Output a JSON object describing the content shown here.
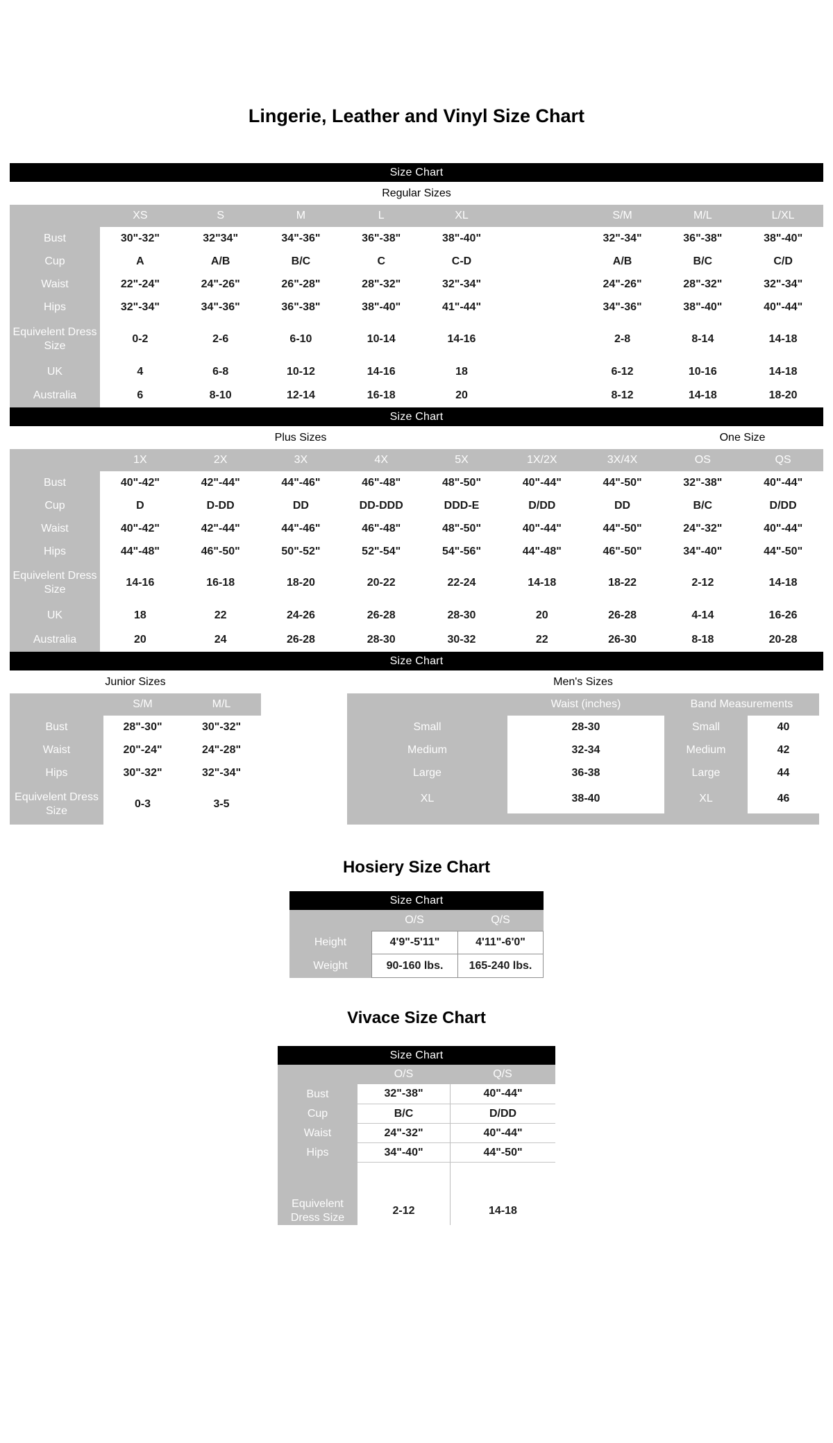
{
  "page": {
    "title": "Lingerie, Leather and Vinyl Size Chart"
  },
  "shared": {
    "size_chart_label": "Size Chart"
  },
  "colors": {
    "header_gray": "#bdbdbd",
    "bar_black": "#000000",
    "label_text": "#fdfdfd",
    "value_text": "#191919"
  },
  "regular": {
    "section_label": "Regular Sizes",
    "columns": [
      "XS",
      "S",
      "M",
      "L",
      "XL",
      "",
      "S/M",
      "M/L",
      "L/XL"
    ],
    "rows": [
      {
        "label": "Bust",
        "values": [
          "30\"-32\"",
          "32\"34\"",
          "34\"-36\"",
          "36\"-38\"",
          "38\"-40\"",
          "",
          "32\"-34\"",
          "36\"-38\"",
          "38\"-40\""
        ]
      },
      {
        "label": "Cup",
        "values": [
          "A",
          "A/B",
          "B/C",
          "C",
          "C-D",
          "",
          "A/B",
          "B/C",
          "C/D"
        ]
      },
      {
        "label": "Waist",
        "values": [
          "22\"-24\"",
          "24\"-26\"",
          "26\"-28\"",
          "28\"-32\"",
          "32\"-34\"",
          "",
          "24\"-26\"",
          "28\"-32\"",
          "32\"-34\""
        ]
      },
      {
        "label": "Hips",
        "values": [
          "32\"-34\"",
          "34\"-36\"",
          "36\"-38\"",
          "38\"-40\"",
          "41\"-44\"",
          "",
          "34\"-36\"",
          "38\"-40\"",
          "40\"-44\""
        ]
      },
      {
        "label": "Equivelent Dress Size",
        "values": [
          "0-2",
          "2-6",
          "6-10",
          "10-14",
          "14-16",
          "",
          "2-8",
          "8-14",
          "14-18"
        ]
      },
      {
        "label": "UK",
        "values": [
          "4",
          "6-8",
          "10-12",
          "14-16",
          "18",
          "",
          "6-12",
          "10-16",
          "14-18"
        ]
      },
      {
        "label": "Australia",
        "values": [
          "6",
          "8-10",
          "12-14",
          "16-18",
          "20",
          "",
          "8-12",
          "14-18",
          "18-20"
        ]
      }
    ]
  },
  "plus": {
    "section_label": "Plus Sizes",
    "one_size_label": "One Size",
    "columns": [
      "1X",
      "2X",
      "3X",
      "4X",
      "5X",
      "1X/2X",
      "3X/4X",
      "OS",
      "QS"
    ],
    "rows": [
      {
        "label": "Bust",
        "values": [
          "40\"-42\"",
          "42\"-44\"",
          "44\"-46\"",
          "46\"-48\"",
          "48\"-50\"",
          "40\"-44\"",
          "44\"-50\"",
          "32\"-38\"",
          "40\"-44\""
        ]
      },
      {
        "label": "Cup",
        "values": [
          "D",
          "D-DD",
          "DD",
          "DD-DDD",
          "DDD-E",
          "D/DD",
          "DD",
          "B/C",
          "D/DD"
        ]
      },
      {
        "label": "Waist",
        "values": [
          "40\"-42\"",
          "42\"-44\"",
          "44\"-46\"",
          "46\"-48\"",
          "48\"-50\"",
          "40\"-44\"",
          "44\"-50\"",
          "24\"-32\"",
          "40\"-44\""
        ]
      },
      {
        "label": "Hips",
        "values": [
          "44\"-48\"",
          "46\"-50\"",
          "50\"-52\"",
          "52\"-54\"",
          "54\"-56\"",
          "44\"-48\"",
          "46\"-50\"",
          "34\"-40\"",
          "44\"-50\""
        ]
      },
      {
        "label": "Equivelent Dress Size",
        "values": [
          "14-16",
          "16-18",
          "18-20",
          "20-22",
          "22-24",
          "14-18",
          "18-22",
          "2-12",
          "14-18"
        ]
      },
      {
        "label": "UK",
        "values": [
          "18",
          "22",
          "24-26",
          "26-28",
          "28-30",
          "20",
          "26-28",
          "4-14",
          "16-26"
        ]
      },
      {
        "label": "Australia",
        "values": [
          "20",
          "24",
          "26-28",
          "28-30",
          "30-32",
          "22",
          "26-30",
          "8-18",
          "20-28"
        ]
      }
    ]
  },
  "junior": {
    "section_label": "Junior Sizes",
    "columns": [
      "S/M",
      "M/L"
    ],
    "rows": [
      {
        "label": "Bust",
        "values": [
          "28\"-30\"",
          "30\"-32\""
        ]
      },
      {
        "label": "Waist",
        "values": [
          "20\"-24\"",
          "24\"-28\""
        ]
      },
      {
        "label": "Hips",
        "values": [
          "30\"-32\"",
          "32\"-34\""
        ]
      },
      {
        "label": "Equivelent Dress Size",
        "values": [
          "0-3",
          "3-5"
        ]
      }
    ]
  },
  "mens": {
    "section_label": "Men's Sizes",
    "waist_header": "Waist (inches)",
    "band_header": "Band Measurements",
    "rows": [
      {
        "label": "Small",
        "waist": "28-30",
        "band_label": "Small",
        "band": "40"
      },
      {
        "label": "Medium",
        "waist": "32-34",
        "band_label": "Medium",
        "band": "42"
      },
      {
        "label": "Large",
        "waist": "36-38",
        "band_label": "Large",
        "band": "44"
      },
      {
        "label": "XL",
        "waist": "38-40",
        "band_label": "XL",
        "band": "46"
      }
    ]
  },
  "hosiery": {
    "title": "Hosiery Size Chart",
    "columns": [
      "O/S",
      "Q/S"
    ],
    "rows": [
      {
        "label": "Height",
        "values": [
          "4'9\"-5'11\"",
          "4'11\"-6'0\""
        ]
      },
      {
        "label": "Weight",
        "values": [
          "90-160 lbs.",
          "165-240 lbs."
        ]
      }
    ]
  },
  "vivace": {
    "title": "Vivace Size Chart",
    "columns": [
      "O/S",
      "Q/S"
    ],
    "rows": [
      {
        "label": "Bust",
        "values": [
          "32\"-38\"",
          "40\"-44\""
        ]
      },
      {
        "label": "Cup",
        "values": [
          "B/C",
          "D/DD"
        ]
      },
      {
        "label": "Waist",
        "values": [
          "24\"-32\"",
          "40\"-44\""
        ]
      },
      {
        "label": "Hips",
        "values": [
          "34\"-40\"",
          "44\"-50\""
        ]
      },
      {
        "label": "",
        "values": [
          "",
          ""
        ]
      },
      {
        "label": "Equivelent Dress Size",
        "values": [
          "2-12",
          "14-18"
        ]
      }
    ]
  }
}
